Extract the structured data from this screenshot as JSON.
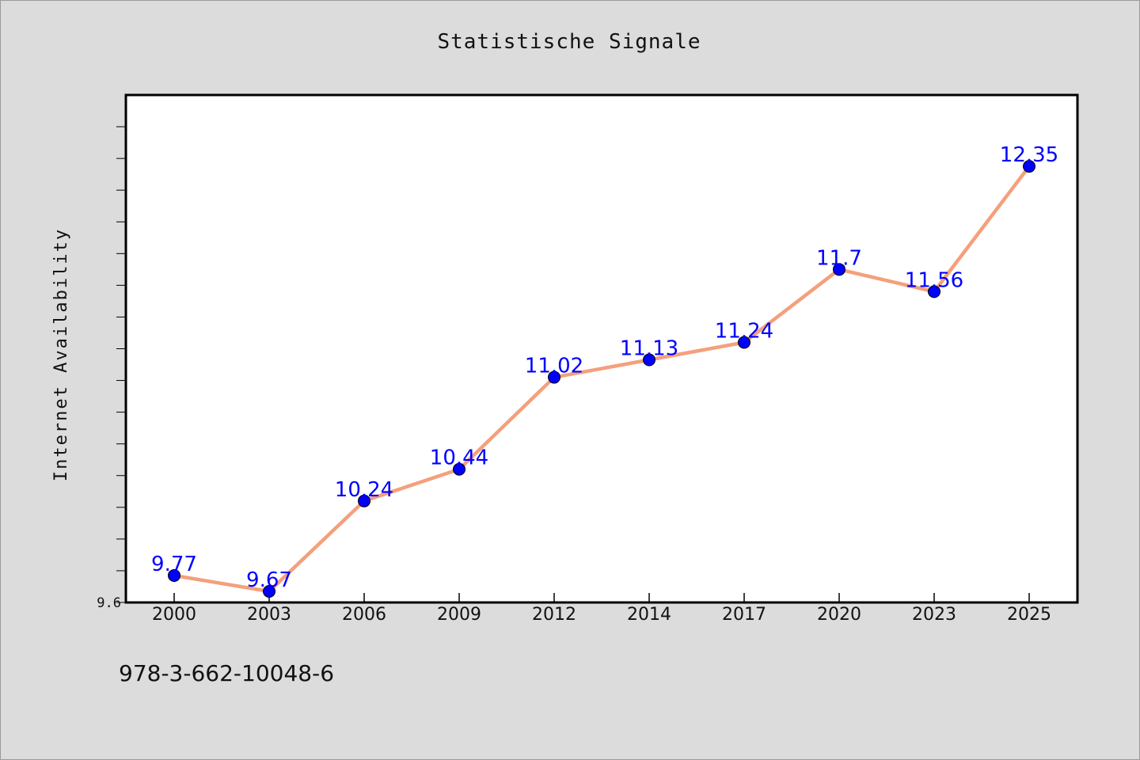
{
  "page": {
    "isbn": "978-3-662-10048-6"
  },
  "chart_data": {
    "type": "line",
    "title": "Statistische Signale",
    "xlabel": "",
    "ylabel": "Internet Availability",
    "categories": [
      "2000",
      "2003",
      "2006",
      "2009",
      "2012",
      "2014",
      "2017",
      "2020",
      "2023",
      "2025"
    ],
    "series": [
      {
        "values": [
          9.77,
          9.67,
          10.24,
          10.44,
          11.02,
          11.13,
          11.24,
          11.7,
          11.56,
          12.35
        ],
        "labels": [
          "9.77",
          "9.67",
          "10.24",
          "10.44",
          "11.02",
          "11.13",
          "11.24",
          "11.7",
          "11.56",
          "12.35"
        ]
      }
    ],
    "y_tick_labels": [
      "9.6"
    ],
    "ylim": [
      9.6,
      12.8
    ],
    "y_minor_step": 0.2,
    "grid": false,
    "colors": {
      "line": "#f4a07c",
      "marker": "#0000ff",
      "data_label": "#0000ff",
      "plot_background": "#ffffff",
      "page_background": "#dcdcdc"
    }
  }
}
